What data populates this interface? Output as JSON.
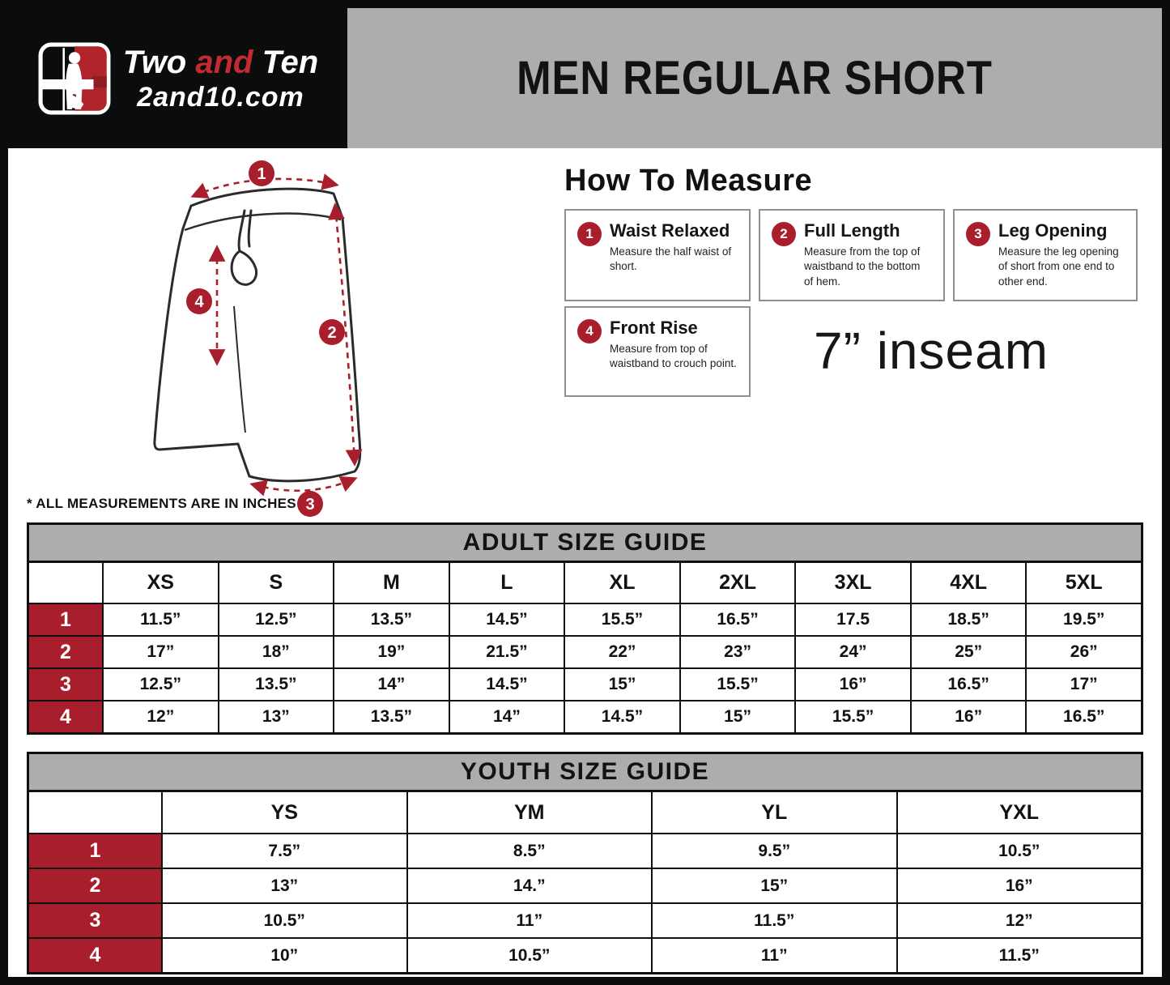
{
  "brand": {
    "word1": "Two",
    "word2": "and",
    "word3": "Ten",
    "domain": "2and10.com"
  },
  "header": {
    "title": "MEN REGULAR SHORT"
  },
  "colors": {
    "accent_red": "#a91e2c",
    "logo_red": "#c12b31",
    "band_gray": "#adadad",
    "frame_black": "#0b0d0c"
  },
  "measure": {
    "heading": "How To Measure",
    "items": [
      {
        "num": "1",
        "title": "Waist Relaxed",
        "desc": "Measure the half waist of short."
      },
      {
        "num": "2",
        "title": "Full Length",
        "desc": "Measure from the top of waistband to the bottom of hem."
      },
      {
        "num": "3",
        "title": "Leg Opening",
        "desc": "Measure the leg opening of short from one end to other end."
      },
      {
        "num": "4",
        "title": "Front Rise",
        "desc": "Measure from top of waistband to crouch point."
      }
    ],
    "inseam": "7” inseam"
  },
  "diagram": {
    "markers": [
      "1",
      "2",
      "3",
      "4"
    ]
  },
  "note": "* ALL MEASUREMENTS ARE IN INCHES",
  "adult_table": {
    "title": "ADULT SIZE GUIDE",
    "columns": [
      "XS",
      "S",
      "M",
      "L",
      "XL",
      "2XL",
      "3XL",
      "4XL",
      "5XL"
    ],
    "rows": [
      {
        "label": "1",
        "values": [
          "11.5”",
          "12.5”",
          "13.5”",
          "14.5”",
          "15.5”",
          "16.5”",
          "17.5",
          "18.5”",
          "19.5”"
        ]
      },
      {
        "label": "2",
        "values": [
          "17”",
          "18”",
          "19”",
          "21.5”",
          "22”",
          "23”",
          "24”",
          "25”",
          "26”"
        ]
      },
      {
        "label": "3",
        "values": [
          "12.5”",
          "13.5”",
          "14”",
          "14.5”",
          "15”",
          "15.5”",
          "16”",
          "16.5”",
          "17”"
        ]
      },
      {
        "label": "4",
        "values": [
          "12”",
          "13”",
          "13.5”",
          "14”",
          "14.5”",
          "15”",
          "15.5”",
          "16”",
          "16.5”"
        ]
      }
    ]
  },
  "youth_table": {
    "title": "YOUTH SIZE GUIDE",
    "columns": [
      "YS",
      "YM",
      "YL",
      "YXL"
    ],
    "rows": [
      {
        "label": "1",
        "values": [
          "7.5”",
          "8.5”",
          "9.5”",
          "10.5”"
        ]
      },
      {
        "label": "2",
        "values": [
          "13”",
          "14.”",
          "15”",
          "16”"
        ]
      },
      {
        "label": "3",
        "values": [
          "10.5”",
          "11”",
          "11.5”",
          "12”"
        ]
      },
      {
        "label": "4",
        "values": [
          "10”",
          "10.5”",
          "11”",
          "11.5”"
        ]
      }
    ]
  }
}
